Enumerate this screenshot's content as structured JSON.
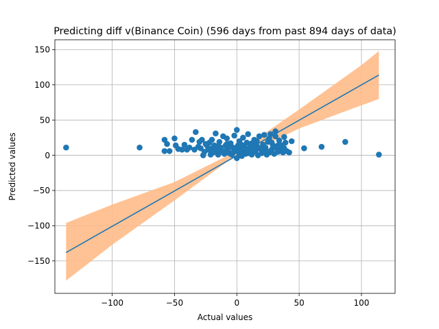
{
  "chart_data": {
    "type": "scatter",
    "title": "Predicting diff v(Binance Coin) (596 days from past 894 days of data)",
    "xlabel": "Actual values",
    "ylabel": "Predicted values",
    "xlim": [
      -146,
      127
    ],
    "ylim": [
      -196,
      164
    ],
    "xticks": [
      -100,
      -50,
      0,
      50,
      100
    ],
    "yticks": [
      -150,
      -100,
      -50,
      0,
      50,
      100,
      150
    ],
    "grid": true,
    "colors": {
      "points": "#1f77b4",
      "line": "#1f77b4",
      "band": "#ffbb88"
    },
    "fit_line": {
      "x": [
        -137,
        114
      ],
      "y": [
        -138,
        114
      ]
    },
    "confidence_band": {
      "x": [
        -137,
        -100,
        -50,
        0,
        10,
        50,
        100,
        114
      ],
      "lower": [
        -178,
        -127,
        -64,
        1,
        4,
        38,
        71,
        80
      ],
      "upper": [
        -96,
        -70,
        -38,
        6,
        16,
        65,
        128,
        148
      ]
    },
    "points": [
      [
        -137,
        11
      ],
      [
        -78,
        11
      ],
      [
        -58,
        22
      ],
      [
        -56,
        16
      ],
      [
        -58,
        6
      ],
      [
        -54,
        6
      ],
      [
        -50,
        24
      ],
      [
        -49,
        14
      ],
      [
        -47,
        9
      ],
      [
        -44,
        8
      ],
      [
        -42,
        15
      ],
      [
        -40,
        8
      ],
      [
        -38,
        11
      ],
      [
        -36,
        22
      ],
      [
        -34,
        8
      ],
      [
        -33,
        33
      ],
      [
        -31,
        12
      ],
      [
        -29,
        10
      ],
      [
        -28,
        22
      ],
      [
        -27,
        0
      ],
      [
        -26,
        5
      ],
      [
        -24,
        14
      ],
      [
        -23,
        8
      ],
      [
        -22,
        18
      ],
      [
        -21,
        1
      ],
      [
        -20,
        10
      ],
      [
        -19,
        4
      ],
      [
        -18,
        14
      ],
      [
        -17,
        31
      ],
      [
        -16,
        7
      ],
      [
        -15,
        1
      ],
      [
        -14,
        19
      ],
      [
        -13,
        11
      ],
      [
        -12,
        5
      ],
      [
        -11,
        27
      ],
      [
        -10,
        2
      ],
      [
        -9,
        14
      ],
      [
        -8,
        24
      ],
      [
        -7,
        9
      ],
      [
        -6,
        3
      ],
      [
        -5,
        17
      ],
      [
        -4,
        1
      ],
      [
        -3,
        11
      ],
      [
        -2,
        28
      ],
      [
        -1,
        6
      ],
      [
        0,
        36
      ],
      [
        0,
        -4
      ],
      [
        1,
        8
      ],
      [
        1,
        14
      ],
      [
        2,
        2
      ],
      [
        2,
        20
      ],
      [
        3,
        5
      ],
      [
        4,
        11
      ],
      [
        4,
        -1
      ],
      [
        5,
        25
      ],
      [
        6,
        7
      ],
      [
        6,
        14
      ],
      [
        7,
        2
      ],
      [
        8,
        18
      ],
      [
        8,
        9
      ],
      [
        9,
        30
      ],
      [
        10,
        4
      ],
      [
        11,
        12
      ],
      [
        12,
        17
      ],
      [
        12,
        1
      ],
      [
        13,
        8
      ],
      [
        14,
        22
      ],
      [
        15,
        5
      ],
      [
        16,
        13
      ],
      [
        17,
        0
      ],
      [
        18,
        27
      ],
      [
        19,
        9
      ],
      [
        20,
        3
      ],
      [
        21,
        15
      ],
      [
        22,
        29
      ],
      [
        22,
        6
      ],
      [
        23,
        11
      ],
      [
        24,
        1
      ],
      [
        25,
        19
      ],
      [
        26,
        4
      ],
      [
        26,
        24
      ],
      [
        27,
        30
      ],
      [
        28,
        8
      ],
      [
        29,
        14
      ],
      [
        30,
        2
      ],
      [
        31,
        27
      ],
      [
        31,
        34
      ],
      [
        32,
        10
      ],
      [
        33,
        5
      ],
      [
        34,
        21
      ],
      [
        35,
        8
      ],
      [
        36,
        14
      ],
      [
        37,
        4
      ],
      [
        38,
        26
      ],
      [
        38,
        10
      ],
      [
        39,
        18
      ],
      [
        40,
        6
      ],
      [
        42,
        4
      ],
      [
        44,
        20
      ],
      [
        54,
        10
      ],
      [
        68,
        12
      ],
      [
        87,
        19
      ],
      [
        114,
        1
      ],
      [
        -25,
        16
      ],
      [
        -30,
        19
      ],
      [
        -15,
        13
      ],
      [
        -10,
        6
      ],
      [
        -6,
        12
      ],
      [
        -3,
        4
      ],
      [
        3,
        16
      ],
      [
        5,
        9
      ],
      [
        9,
        3
      ],
      [
        14,
        14
      ],
      [
        18,
        10
      ],
      [
        24,
        6
      ],
      [
        28,
        18
      ],
      [
        33,
        14
      ],
      [
        -20,
        22
      ],
      [
        -8,
        16
      ],
      [
        16,
        20
      ]
    ]
  }
}
